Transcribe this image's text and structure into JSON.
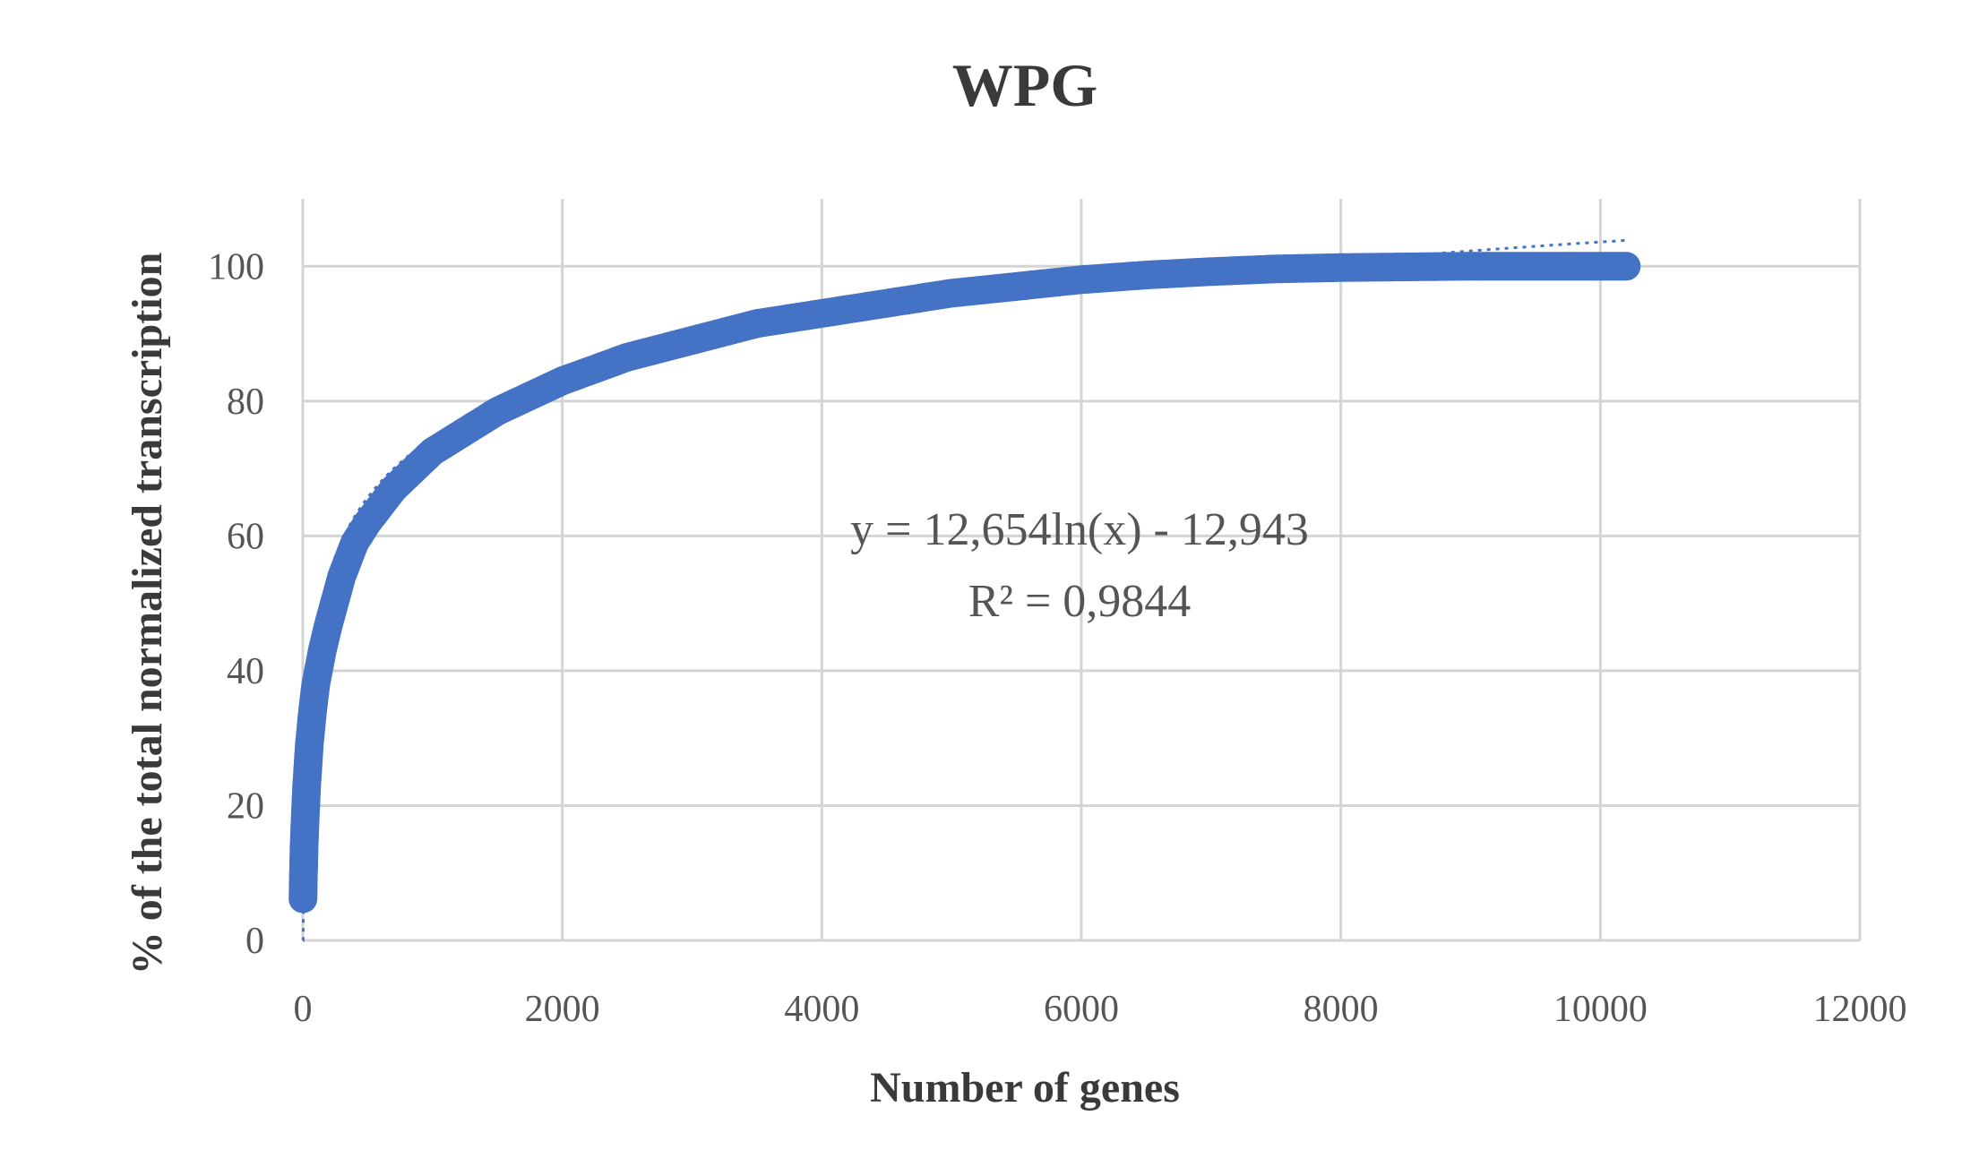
{
  "chart_data": {
    "type": "scatter",
    "title": "WPG",
    "xlabel": "Number of genes",
    "ylabel": "% of the total normalized transcription",
    "xlim": [
      0,
      12000
    ],
    "ylim": [
      0,
      110
    ],
    "xticks": [
      "0",
      "2000",
      "4000",
      "6000",
      "8000",
      "10000",
      "12000"
    ],
    "yticks": [
      "0",
      "20",
      "40",
      "60",
      "80",
      "100"
    ],
    "grid": true,
    "series_color": "#4472c4",
    "points": [
      [
        1,
        5.8
      ],
      [
        5,
        10
      ],
      [
        10,
        14
      ],
      [
        20,
        19
      ],
      [
        30,
        23
      ],
      [
        50,
        29
      ],
      [
        75,
        34
      ],
      [
        100,
        38
      ],
      [
        150,
        43
      ],
      [
        200,
        47
      ],
      [
        300,
        54
      ],
      [
        400,
        59
      ],
      [
        500,
        62
      ],
      [
        700,
        67
      ],
      [
        1000,
        72.5
      ],
      [
        1500,
        78.5
      ],
      [
        2000,
        83
      ],
      [
        2500,
        86.5
      ],
      [
        3000,
        89
      ],
      [
        3500,
        91.5
      ],
      [
        4000,
        93
      ],
      [
        4500,
        94.5
      ],
      [
        5000,
        96
      ],
      [
        5500,
        97
      ],
      [
        6000,
        98
      ],
      [
        6500,
        98.7
      ],
      [
        7000,
        99.2
      ],
      [
        7500,
        99.6
      ],
      [
        8000,
        99.8
      ],
      [
        8500,
        99.9
      ],
      [
        9000,
        100
      ],
      [
        9500,
        100
      ],
      [
        10000,
        100
      ],
      [
        10200,
        100
      ]
    ],
    "trendline": {
      "type": "log",
      "a": 12.654,
      "b": -12.943,
      "equation": "y = 12,654ln(x) - 12,943",
      "r2": "R² = 0,9844"
    }
  }
}
